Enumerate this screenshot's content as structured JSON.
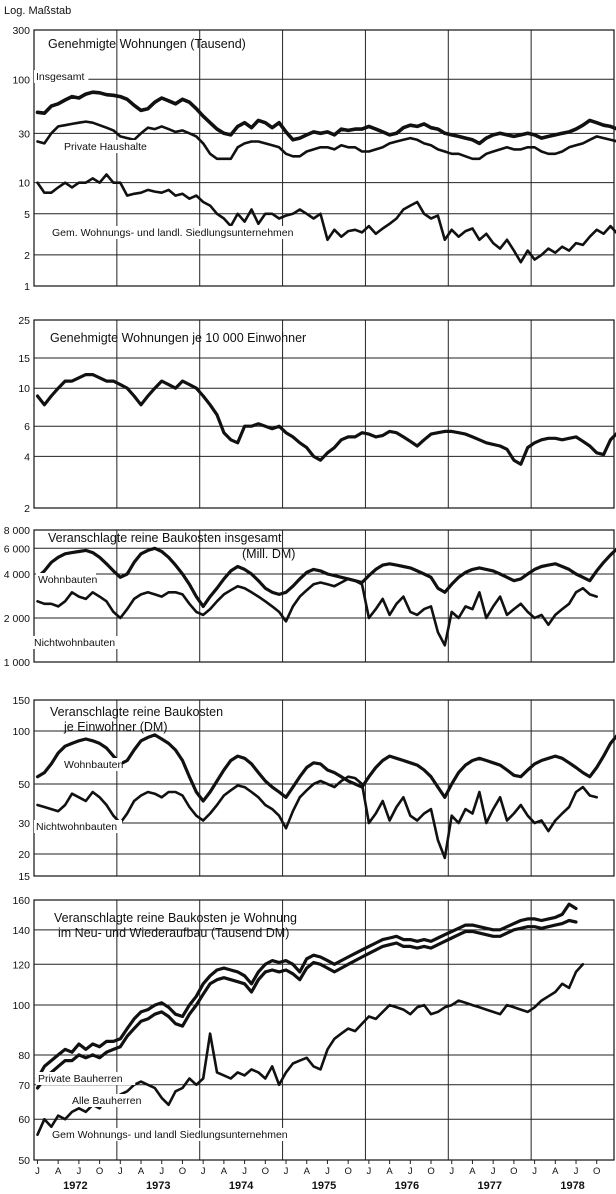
{
  "scale_label": "Log. Maßstab",
  "x_axis": {
    "months": [
      "J",
      "A",
      "J",
      "O"
    ],
    "years": [
      "1972",
      "1973",
      "1974",
      "1975",
      "1976",
      "1977",
      "1978"
    ]
  },
  "chart_data": [
    {
      "type": "line",
      "title": "Genehmigte Wohnungen (Tausend)",
      "yscale": "log",
      "ylim": [
        1,
        300
      ],
      "yticks": [
        1,
        2,
        5,
        10,
        30,
        100,
        300
      ],
      "x": "monthly, Jan 1972 – Sep 1978",
      "series": [
        {
          "name": "Insgesamt",
          "stroke": 3.6,
          "label_pos": "left",
          "values": [
            48,
            47,
            55,
            58,
            63,
            68,
            66,
            72,
            75,
            74,
            71,
            70,
            68,
            64,
            56,
            50,
            52,
            60,
            66,
            62,
            58,
            64,
            60,
            52,
            44,
            38,
            33,
            30,
            29,
            35,
            38,
            34,
            40,
            38,
            34,
            38,
            31,
            26,
            27,
            29,
            31,
            30,
            31,
            29,
            33,
            32,
            33,
            33,
            35,
            33,
            31,
            29,
            30,
            34,
            36,
            35,
            37,
            34,
            33,
            30,
            29,
            28,
            27,
            26,
            24,
            27,
            29,
            30,
            29,
            28,
            29,
            30,
            29,
            27,
            28,
            29,
            30,
            31,
            33,
            36,
            40,
            38,
            36,
            35,
            33
          ]
        },
        {
          "name": "Private Haushalte",
          "stroke": 2.6,
          "label_pos": "left",
          "values": [
            25,
            24,
            30,
            35,
            36,
            37,
            38,
            39,
            38,
            36,
            34,
            32,
            28,
            27,
            26,
            30,
            34,
            33,
            35,
            33,
            31,
            32,
            30,
            28,
            24,
            19,
            17,
            17,
            17,
            22,
            24,
            25,
            25,
            24,
            23,
            22,
            19,
            18,
            18,
            20,
            21,
            22,
            22,
            21,
            23,
            22,
            22,
            20,
            20,
            21,
            22,
            24,
            25,
            26,
            27,
            26,
            24,
            23,
            21,
            20,
            19,
            19,
            18,
            17,
            17,
            19,
            20,
            21,
            22,
            21,
            21,
            22,
            22,
            20,
            19,
            19,
            20,
            22,
            23,
            24,
            26,
            28,
            27,
            26,
            25
          ]
        },
        {
          "name": "Gem. Wohnungs- und landl. Siedlungsunternehmen",
          "stroke": 2.6,
          "label_pos": "left",
          "values": [
            10,
            8,
            8,
            9,
            10,
            9,
            10,
            10,
            11,
            10,
            12,
            10,
            10,
            7.5,
            7.8,
            8,
            8.5,
            8.2,
            8,
            8.5,
            7.5,
            7.8,
            7,
            7.5,
            6.5,
            6,
            5,
            4.5,
            3.8,
            5,
            4.2,
            5.5,
            4,
            5,
            5,
            4.5,
            4.8,
            5,
            5.5,
            5,
            4.5,
            5,
            2.8,
            3.5,
            3,
            3.4,
            3.5,
            3.3,
            3.8,
            3.2,
            3.6,
            4,
            4.5,
            5.5,
            6,
            6.5,
            5,
            4.5,
            4.8,
            2.8,
            3.5,
            3,
            3.4,
            3.6,
            2.8,
            3.2,
            2.6,
            2.3,
            2.8,
            2.2,
            1.7,
            2.2,
            1.8,
            2,
            2.3,
            2.1,
            2.4,
            2.2,
            2.6,
            2.5,
            3,
            3.5,
            3.2,
            3.8,
            3.2
          ]
        }
      ]
    },
    {
      "type": "line",
      "title": "Genehmigte Wohnungen je 10 000 Einwohner",
      "yscale": "log",
      "ylim": [
        2,
        25
      ],
      "yticks": [
        2,
        4,
        6,
        10,
        15,
        25
      ],
      "series": [
        {
          "name": "",
          "stroke": 3.2,
          "values": [
            9,
            8,
            9,
            10,
            11,
            11,
            11.5,
            12,
            12,
            11.5,
            11,
            11,
            10.5,
            10,
            9,
            8,
            9,
            10,
            11,
            10.5,
            10,
            11,
            10.5,
            10,
            9,
            8,
            7,
            5.5,
            5,
            4.8,
            6,
            6,
            6.2,
            6,
            5.8,
            6,
            5.5,
            5.2,
            4.8,
            4.5,
            4,
            3.8,
            4.2,
            4.5,
            5,
            5.2,
            5.2,
            5.5,
            5.4,
            5.2,
            5.3,
            5.6,
            5.5,
            5.2,
            4.9,
            4.6,
            5,
            5.4,
            5.5,
            5.6,
            5.6,
            5.5,
            5.4,
            5.2,
            5,
            4.8,
            4.7,
            4.6,
            4.4,
            3.8,
            3.6,
            4.5,
            4.8,
            5,
            5.1,
            5.1,
            5,
            5.1,
            5.2,
            4.9,
            4.6,
            4.2,
            4.1,
            5,
            5.5,
            6,
            6.5,
            6.5,
            6.2
          ]
        }
      ]
    },
    {
      "type": "line",
      "title": "Veranschlagte reine Baukosten insgesamt",
      "unit": "(Mill. DM)",
      "yscale": "log",
      "ylim": [
        1000,
        8000
      ],
      "yticks": [
        1000,
        2000,
        4000,
        6000,
        8000
      ],
      "series": [
        {
          "name": "Wohnbauten",
          "stroke": 3.2,
          "values": [
            3800,
            4200,
            4800,
            5200,
            5500,
            5600,
            5700,
            5800,
            5600,
            5200,
            4700,
            4200,
            3800,
            4000,
            4800,
            5500,
            5800,
            6000,
            5700,
            5200,
            4600,
            4000,
            3400,
            2800,
            2400,
            2800,
            3200,
            3700,
            4200,
            4500,
            4300,
            4000,
            3600,
            3200,
            3000,
            2900,
            3000,
            3300,
            3700,
            4100,
            4300,
            4200,
            4000,
            3900,
            3800,
            3700,
            3600,
            3500,
            3900,
            4300,
            4600,
            4700,
            4600,
            4500,
            4400,
            4200,
            4000,
            3800,
            3200,
            3000,
            3400,
            3800,
            4100,
            4300,
            4400,
            4300,
            4200,
            4000,
            3800,
            3600,
            3700,
            4000,
            4300,
            4500,
            4600,
            4700,
            4500,
            4300,
            4000,
            3800,
            3600,
            4200,
            4800,
            5400,
            6000,
            6200,
            5800
          ]
        },
        {
          "name": "Nichtwohnbauten",
          "stroke": 2.6,
          "values": [
            2600,
            2500,
            2500,
            2400,
            2600,
            3000,
            2800,
            2700,
            3000,
            2800,
            2600,
            2200,
            2000,
            2300,
            2700,
            2900,
            3000,
            2900,
            2800,
            3000,
            3000,
            2900,
            2500,
            2200,
            2100,
            2300,
            2600,
            2900,
            3100,
            3300,
            3200,
            3000,
            2800,
            2600,
            2400,
            2200,
            1900,
            2400,
            2800,
            3100,
            3400,
            3500,
            3400,
            3300,
            3500,
            3700,
            3600,
            3400,
            2000,
            2300,
            2700,
            2100,
            2500,
            2800,
            2200,
            2100,
            2300,
            2400,
            1600,
            1300,
            2200,
            2000,
            2400,
            2300,
            3000,
            2000,
            2400,
            2800,
            2100,
            2300,
            2500,
            2200,
            2000,
            2100,
            1800,
            2100,
            2300,
            2500,
            3000,
            3200,
            2900,
            2800
          ]
        }
      ]
    },
    {
      "type": "line",
      "title": "Veranschlagte reine Baukosten je Einwohner (DM)",
      "yscale": "log",
      "ylim": [
        15,
        150
      ],
      "yticks": [
        15,
        20,
        30,
        50,
        100,
        150
      ],
      "series": [
        {
          "name": "Wohnbauten",
          "stroke": 3.2,
          "values": [
            55,
            58,
            65,
            75,
            82,
            85,
            88,
            90,
            88,
            85,
            80,
            72,
            65,
            68,
            78,
            88,
            92,
            95,
            90,
            85,
            78,
            68,
            55,
            45,
            40,
            45,
            52,
            60,
            68,
            72,
            70,
            65,
            58,
            52,
            48,
            45,
            42,
            48,
            55,
            62,
            66,
            65,
            60,
            58,
            55,
            52,
            50,
            48,
            55,
            62,
            68,
            72,
            70,
            68,
            66,
            64,
            60,
            55,
            48,
            42,
            50,
            58,
            64,
            68,
            70,
            68,
            66,
            64,
            60,
            56,
            55,
            60,
            65,
            68,
            70,
            72,
            70,
            66,
            62,
            58,
            55,
            62,
            72,
            85,
            95,
            90,
            88
          ]
        },
        {
          "name": "Nichtwohnbauten",
          "stroke": 2.6,
          "values": [
            38,
            37,
            36,
            35,
            38,
            44,
            42,
            40,
            45,
            42,
            38,
            33,
            30,
            34,
            40,
            43,
            45,
            44,
            42,
            45,
            45,
            43,
            37,
            33,
            31,
            34,
            38,
            43,
            46,
            49,
            48,
            45,
            42,
            38,
            36,
            33,
            28,
            35,
            42,
            46,
            50,
            52,
            50,
            48,
            52,
            55,
            54,
            50,
            30,
            34,
            40,
            31,
            37,
            42,
            33,
            31,
            34,
            36,
            24,
            19,
            33,
            30,
            36,
            34,
            45,
            30,
            36,
            42,
            31,
            34,
            38,
            33,
            30,
            31,
            27,
            31,
            34,
            37,
            45,
            48,
            43,
            42
          ]
        }
      ]
    },
    {
      "type": "line",
      "title": "Veranschlagte reine Baukosten je Wohnung im Neu- und Wiederaufbau (Tausend DM)",
      "yscale": "log",
      "ylim": [
        50,
        160
      ],
      "yticks": [
        50,
        60,
        70,
        80,
        100,
        120,
        140,
        160
      ],
      "series": [
        {
          "name": "Private Bauherren",
          "stroke": 3.2,
          "values": [
            72,
            76,
            78,
            80,
            82,
            81,
            84,
            82,
            84,
            83,
            85,
            85,
            86,
            90,
            94,
            97,
            98,
            100,
            101,
            99,
            96,
            95,
            100,
            104,
            110,
            114,
            117,
            118,
            117,
            116,
            114,
            110,
            116,
            120,
            122,
            121,
            122,
            120,
            116,
            123,
            125,
            124,
            122,
            120,
            122,
            124,
            126,
            128,
            130,
            132,
            134,
            135,
            136,
            134,
            134,
            133,
            134,
            133,
            135,
            137,
            139,
            141,
            143,
            143,
            142,
            141,
            140,
            140,
            142,
            144,
            146,
            147,
            147,
            146,
            147,
            148,
            150,
            157,
            154
          ]
        },
        {
          "name": "Alle Bauherren",
          "stroke": 3.2,
          "values": [
            69,
            72,
            74,
            76,
            78,
            78,
            80,
            79,
            80,
            79,
            81,
            82,
            83,
            87,
            90,
            93,
            94,
            96,
            97,
            95,
            92,
            91,
            96,
            100,
            105,
            110,
            112,
            113,
            112,
            111,
            110,
            106,
            112,
            116,
            117,
            116,
            117,
            115,
            112,
            118,
            121,
            120,
            118,
            116,
            118,
            120,
            122,
            124,
            126,
            128,
            130,
            131,
            132,
            130,
            130,
            129,
            130,
            129,
            131,
            133,
            135,
            137,
            139,
            139,
            138,
            137,
            136,
            136,
            138,
            140,
            141,
            142,
            142,
            141,
            142,
            143,
            144,
            146,
            145
          ]
        },
        {
          "name": "Gem Wohnungs- und landl Siedlungsunternehmen",
          "stroke": 2.6,
          "values": [
            56,
            60,
            58,
            61,
            60,
            62,
            63,
            62,
            64,
            63,
            66,
            65,
            67,
            68,
            70,
            71,
            70,
            69,
            66,
            64,
            68,
            69,
            72,
            70,
            72,
            88,
            74,
            73,
            72,
            74,
            73,
            75,
            74,
            72,
            76,
            70,
            74,
            77,
            78,
            79,
            76,
            75,
            82,
            86,
            88,
            90,
            89,
            92,
            95,
            94,
            97,
            100,
            99,
            98,
            96,
            99,
            100,
            96,
            97,
            99,
            100,
            102,
            101,
            100,
            99,
            98,
            97,
            96,
            100,
            99,
            98,
            97,
            99,
            102,
            104,
            106,
            110,
            108,
            116,
            120
          ]
        }
      ]
    }
  ]
}
